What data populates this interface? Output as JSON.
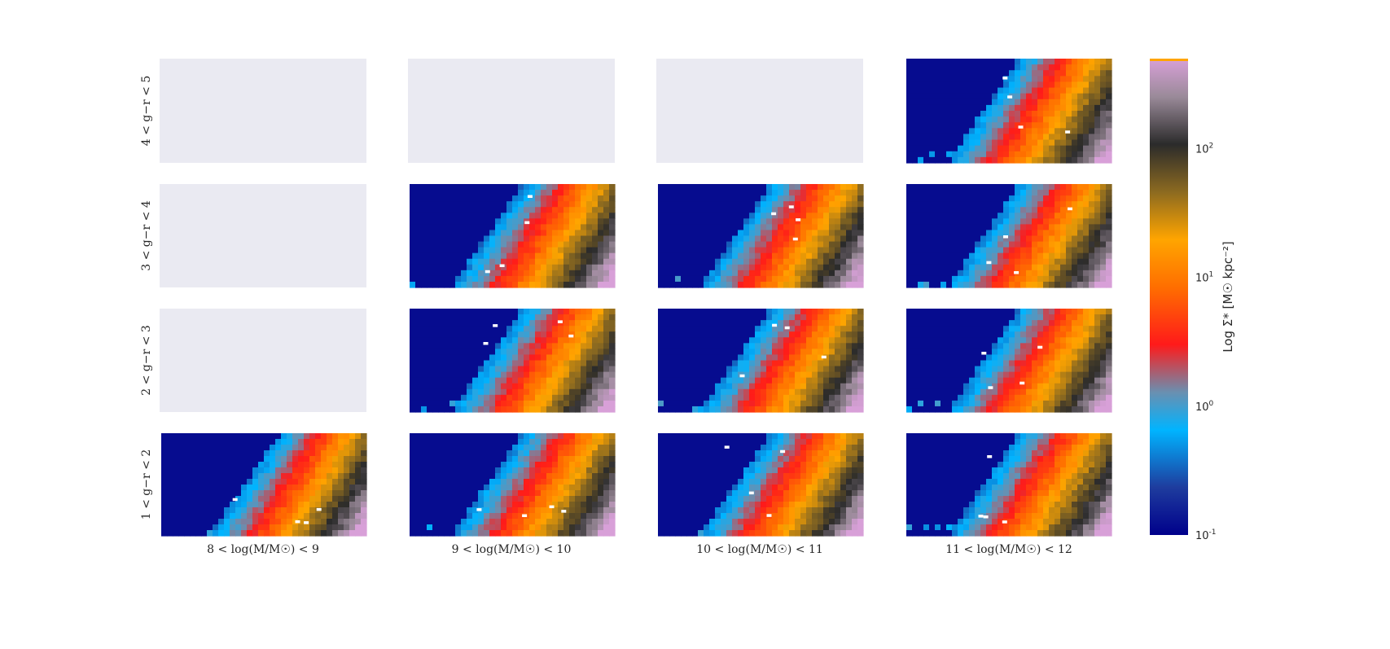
{
  "chart_data": {
    "type": "heatmap",
    "layout": "4x4 grid of panels",
    "columns": [
      {
        "label": "8 < log(M/M☉) < 9"
      },
      {
        "label": "9 < log(M/M☉) < 10"
      },
      {
        "label": "10 < log(M/M☉) < 11"
      },
      {
        "label": "11 < log(M/M☉) < 12"
      }
    ],
    "rows": [
      {
        "label": "4 < g−r < 5"
      },
      {
        "label": "3 < g−r < 4"
      },
      {
        "label": "2 < g−r < 3"
      },
      {
        "label": "1 < g−r < 2"
      }
    ],
    "panels_with_data": [
      [
        false,
        false,
        false,
        true
      ],
      [
        false,
        true,
        true,
        true
      ],
      [
        false,
        true,
        true,
        true
      ],
      [
        true,
        true,
        true,
        true
      ]
    ],
    "colorbar": {
      "label": "Log Σ* [M☉ kpc⁻²]",
      "scale": "log",
      "range": [
        0.1,
        500
      ],
      "ticks": [
        {
          "base": "10",
          "exp": "-1",
          "value": 0.1
        },
        {
          "base": "10",
          "exp": "0",
          "value": 1
        },
        {
          "base": "10",
          "exp": "1",
          "value": 10
        },
        {
          "base": "10",
          "exp": "2",
          "value": 100
        }
      ],
      "colors": [
        "#00008b",
        "#1e3c9e",
        "#00b4ff",
        "#6a8fb0",
        "#ff1a1a",
        "#ff8c00",
        "#ffa500",
        "#8c6a20",
        "#2b2b2b",
        "#9a8a99",
        "#d8a0d8"
      ]
    },
    "empty_panel_color": "#eaeaf2"
  }
}
